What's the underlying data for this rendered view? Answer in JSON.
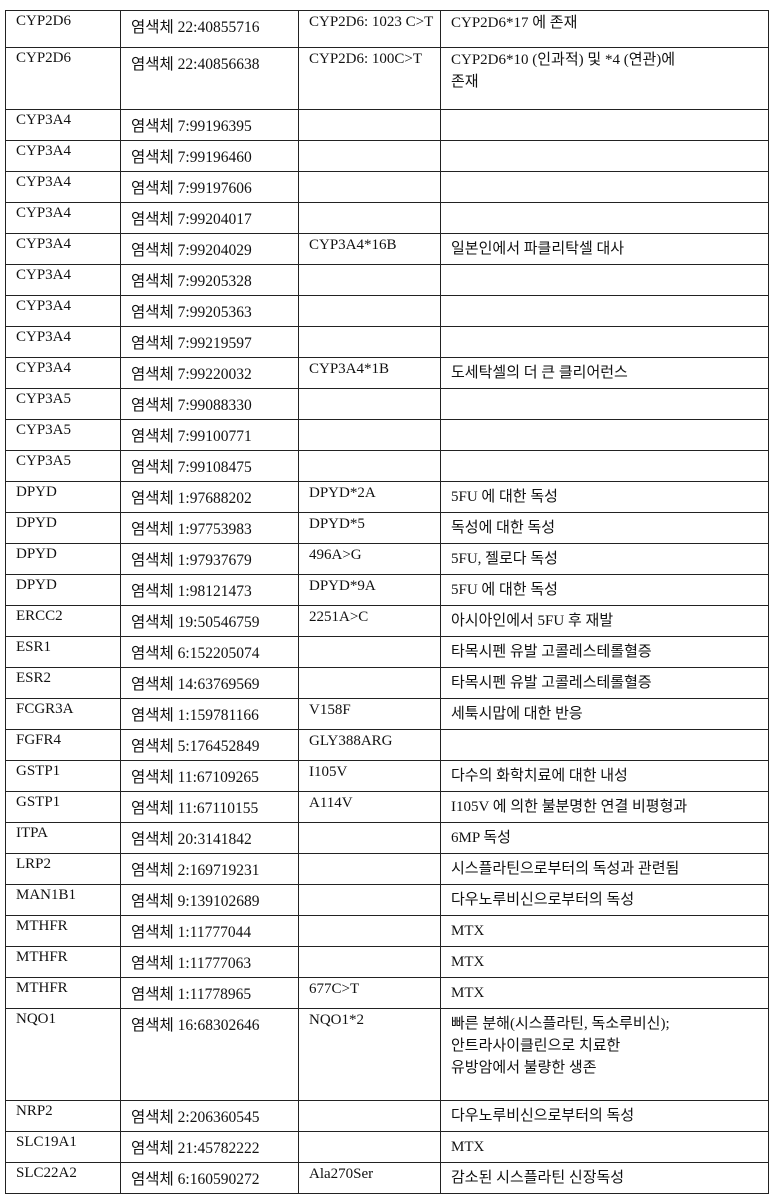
{
  "rows": [
    {
      "gene": "CYP2D6",
      "location": "염색체 22:40855716",
      "variant": "CYP2D6: 1023 C>T",
      "effect": [
        "CYP2D6*17 에 존재"
      ]
    },
    {
      "gene": "CYP2D6",
      "location": "염색체 22:40856638",
      "variant": "CYP2D6: 100C>T",
      "effect": [
        "CYP2D6*10 (인과적) 및 *4 (연관)에",
        "존재"
      ]
    },
    {
      "gene": "CYP3A4",
      "location": "염색체 7:99196395",
      "variant": "",
      "effect": []
    },
    {
      "gene": "CYP3A4",
      "location": "염색체 7:99196460",
      "variant": "",
      "effect": []
    },
    {
      "gene": "CYP3A4",
      "location": "염색체 7:99197606",
      "variant": "",
      "effect": []
    },
    {
      "gene": "CYP3A4",
      "location": "염색체 7:99204017",
      "variant": "",
      "effect": []
    },
    {
      "gene": "CYP3A4",
      "location": "염색체 7:99204029",
      "variant": "CYP3A4*16B",
      "effect": [
        "일본인에서 파클리탁셀 대사"
      ]
    },
    {
      "gene": "CYP3A4",
      "location": "염색체 7:99205328",
      "variant": "",
      "effect": []
    },
    {
      "gene": "CYP3A4",
      "location": "염색체 7:99205363",
      "variant": "",
      "effect": []
    },
    {
      "gene": "CYP3A4",
      "location": "염색체 7:99219597",
      "variant": "",
      "effect": []
    },
    {
      "gene": "CYP3A4",
      "location": "염색체 7:99220032",
      "variant": "CYP3A4*1B",
      "effect": [
        "도세탁셀의 더 큰 클리어런스"
      ]
    },
    {
      "gene": "CYP3A5",
      "location": "염색체 7:99088330",
      "variant": "",
      "effect": []
    },
    {
      "gene": "CYP3A5",
      "location": "염색체 7:99100771",
      "variant": "",
      "effect": []
    },
    {
      "gene": "CYP3A5",
      "location": "염색체 7:99108475",
      "variant": "",
      "effect": []
    },
    {
      "gene": "DPYD",
      "location": "염색체 1:97688202",
      "variant": "DPYD*2A",
      "effect": [
        "5FU 에 대한 독성"
      ]
    },
    {
      "gene": "DPYD",
      "location": "염색체 1:97753983",
      "variant": "DPYD*5",
      "effect": [
        "독성에 대한 독성"
      ]
    },
    {
      "gene": "DPYD",
      "location": "염색체 1:97937679",
      "variant": "496A>G",
      "effect": [
        "5FU, 젤로다 독성"
      ]
    },
    {
      "gene": "DPYD",
      "location": "염색체 1:98121473",
      "variant": "DPYD*9A",
      "effect": [
        "5FU 에 대한 독성"
      ]
    },
    {
      "gene": "ERCC2",
      "location": "염색체 19:50546759",
      "variant": "2251A>C",
      "effect": [
        "아시아인에서 5FU 후 재발"
      ]
    },
    {
      "gene": "ESR1",
      "location": "염색체 6:152205074",
      "variant": "",
      "effect": [
        "타목시펜 유발 고콜레스테롤혈증"
      ]
    },
    {
      "gene": "ESR2",
      "location": "염색체 14:63769569",
      "variant": "",
      "effect": [
        "타목시펜 유발 고콜레스테롤혈증"
      ]
    },
    {
      "gene": "FCGR3A",
      "location": "염색체 1:159781166",
      "variant": "V158F",
      "effect": [
        "세툭시맙에 대한 반응"
      ]
    },
    {
      "gene": "FGFR4",
      "location": "염색체 5:176452849",
      "variant": "GLY388ARG",
      "effect": []
    },
    {
      "gene": "GSTP1",
      "location": "염색체 11:67109265",
      "variant": "I105V",
      "effect": [
        "다수의 화학치료에 대한 내성"
      ]
    },
    {
      "gene": "GSTP1",
      "location": "염색체 11:67110155",
      "variant": "A114V",
      "effect": [
        "I105V 에 의한 불분명한 연결 비평형과"
      ]
    },
    {
      "gene": "ITPA",
      "location": "염색체 20:3141842",
      "variant": "",
      "effect": [
        "6MP 독성"
      ]
    },
    {
      "gene": "LRP2",
      "location": "염색체 2:169719231",
      "variant": "",
      "effect": [
        "시스플라틴으로부터의 독성과 관련됨"
      ]
    },
    {
      "gene": "MAN1B1",
      "location": "염색체 9:139102689",
      "variant": "",
      "effect": [
        "다우노루비신으로부터의 독성"
      ]
    },
    {
      "gene": "MTHFR",
      "location": "염색체 1:11777044",
      "variant": "",
      "effect": [
        "MTX"
      ]
    },
    {
      "gene": "MTHFR",
      "location": "염색체 1:11777063",
      "variant": "",
      "effect": [
        "MTX"
      ]
    },
    {
      "gene": "MTHFR",
      "location": "염색체 1:11778965",
      "variant": "677C>T",
      "effect": [
        "MTX"
      ]
    },
    {
      "gene": "NQO1",
      "location": "염색체 16:68302646",
      "variant": "NQO1*2",
      "effect": [
        "빠른 분해(시스플라틴, 독소루비신);",
        "안트라사이클린으로 치료한",
        "유방암에서 불량한 생존"
      ]
    },
    {
      "gene": "NRP2",
      "location": "염색체 2:206360545",
      "variant": "",
      "effect": [
        "다우노루비신으로부터의 독성"
      ]
    },
    {
      "gene": "SLC19A1",
      "location": "염색체 21:45782222",
      "variant": "",
      "effect": [
        "MTX"
      ]
    },
    {
      "gene": "SLC22A2",
      "location": "염색체 6:160590272",
      "variant": "Ala270Ser",
      "effect": [
        "감소된 시스플라틴 신장독성"
      ]
    }
  ]
}
